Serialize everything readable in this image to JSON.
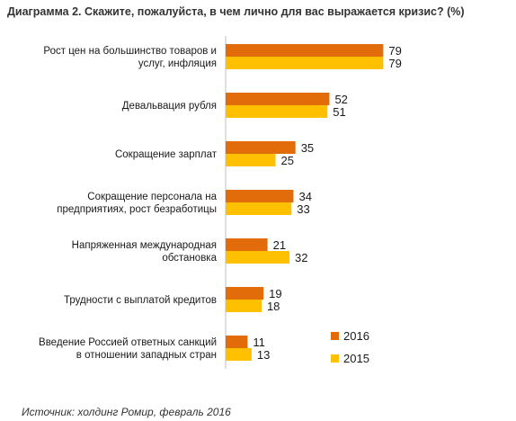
{
  "title": "Диаграмма 2. Скажите, пожалуйста, в чем лично для вас выражается кризис? (%)",
  "source": "Источник: холдинг Ромир, февраль 2016",
  "chart_data": {
    "type": "bar",
    "orientation": "horizontal",
    "title": "Диаграмма 2. Скажите, пожалуйста, в чем лично для вас выражается кризис? (%)",
    "categories": [
      [
        "Рост цен на большинство товаров и",
        "услуг, инфляция"
      ],
      [
        "Девальвация рубля"
      ],
      [
        "Сокращение зарплат"
      ],
      [
        "Сокращение персонала на",
        "предприятиях, рост безработицы"
      ],
      [
        "Напряженная международная",
        "обстановка"
      ],
      [
        "Трудности с выплатой кредитов"
      ],
      [
        "Введение Россией ответных санкций",
        "в отношении западных стран"
      ]
    ],
    "series": [
      {
        "name": "2016",
        "color": "#E36C0A",
        "values": [
          79,
          52,
          35,
          34,
          21,
          19,
          11
        ]
      },
      {
        "name": "2015",
        "color": "#FFC000",
        "values": [
          79,
          51,
          25,
          33,
          32,
          18,
          13
        ]
      }
    ],
    "xlim": [
      0,
      100
    ],
    "grid": false,
    "legend_position": "bottom-right",
    "value_labels": true
  }
}
